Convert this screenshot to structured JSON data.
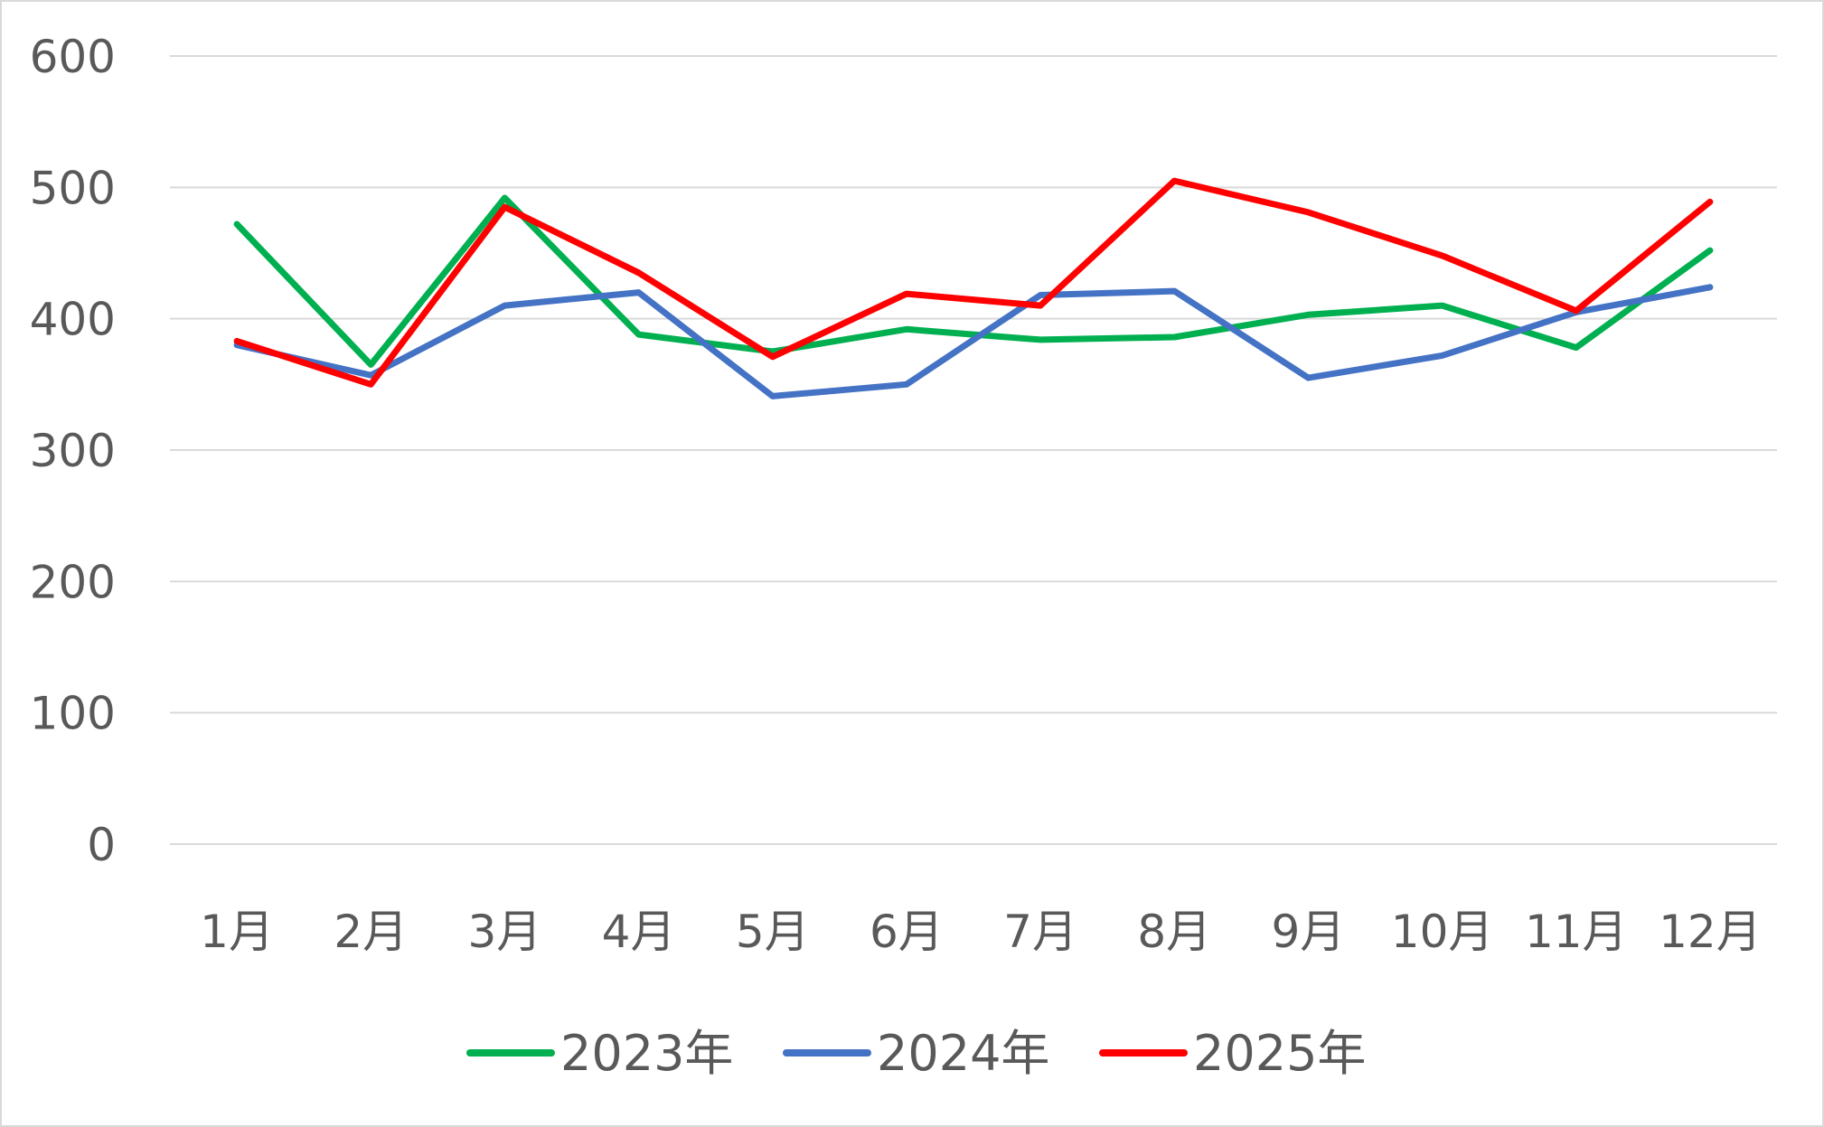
{
  "chart_data": {
    "type": "line",
    "title": "",
    "xlabel": "",
    "ylabel": "",
    "categories": [
      "1月",
      "2月",
      "3月",
      "4月",
      "5月",
      "6月",
      "7月",
      "8月",
      "9月",
      "10月",
      "11月",
      "12月"
    ],
    "ylim": [
      0,
      600
    ],
    "yticks": [
      0,
      100,
      200,
      300,
      400,
      500,
      600
    ],
    "grid": "horizontal",
    "legend_position": "bottom",
    "series": [
      {
        "name": "2023年",
        "color": "#00b050",
        "values": [
          472,
          365,
          492,
          388,
          375,
          392,
          384,
          386,
          403,
          410,
          378,
          452
        ]
      },
      {
        "name": "2024年",
        "color": "#4472c4",
        "values": [
          380,
          357,
          410,
          420,
          341,
          350,
          418,
          421,
          355,
          372,
          405,
          424
        ]
      },
      {
        "name": "2025年",
        "color": "#ff0000",
        "values": [
          383,
          350,
          485,
          435,
          371,
          419,
          410,
          505,
          481,
          448,
          406,
          489
        ]
      }
    ]
  }
}
